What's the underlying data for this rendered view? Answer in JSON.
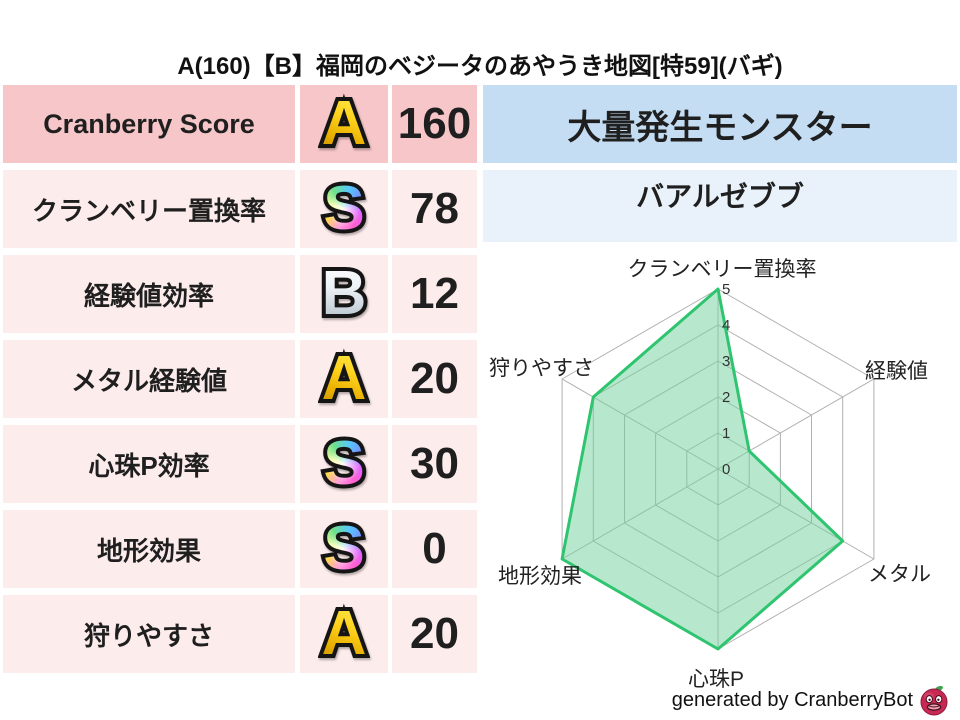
{
  "title": "A(160)【B】福岡のベジータのあやうき地図[特59](バギ)",
  "stats_table": {
    "rows": [
      {
        "label": "Cranberry Score",
        "grade": "A",
        "grade_style": "gold",
        "value": "160"
      },
      {
        "label": "クランベリー置換率",
        "grade": "S",
        "grade_style": "rainbow",
        "value": "78"
      },
      {
        "label": "経験値効率",
        "grade": "B",
        "grade_style": "silver",
        "value": "12"
      },
      {
        "label": "メタル経験値",
        "grade": "A",
        "grade_style": "gold",
        "value": "20"
      },
      {
        "label": "心珠P効率",
        "grade": "S",
        "grade_style": "rainbow",
        "value": "30"
      },
      {
        "label": "地形効果",
        "grade": "S",
        "grade_style": "rainbow",
        "value": "0"
      },
      {
        "label": "狩りやすさ",
        "grade": "A",
        "grade_style": "gold",
        "value": "20"
      }
    ]
  },
  "monster_panel": {
    "header": "大量発生モンスター",
    "name": "バアルゼブブ"
  },
  "chart_data": {
    "type": "radar",
    "axes": [
      "クランベリー置換率",
      "経験値",
      "メタル",
      "心珠P",
      "地形効果",
      "狩りやすさ"
    ],
    "values": [
      5,
      1,
      4,
      5,
      5,
      4
    ],
    "ticks": [
      0,
      1,
      2,
      3,
      4,
      5
    ],
    "range": [
      0,
      5
    ],
    "grid": "hexagonal rings 1-5 with radial axes",
    "legend": "none",
    "fill_color": "#70d29c",
    "line_color": "#2fc46f",
    "grid_color": "#b0b0b0",
    "tick_color": "#333333"
  },
  "footer": {
    "credit": "generated by CranberryBot",
    "icon": "cranberry-bot-icon"
  },
  "colors": {
    "score_row_bg": "#f7c6c9",
    "stat_row_bg": "#fdecec",
    "monster_header_bg": "#c4ddf3",
    "monster_name_bg": "#e9f2fb"
  }
}
